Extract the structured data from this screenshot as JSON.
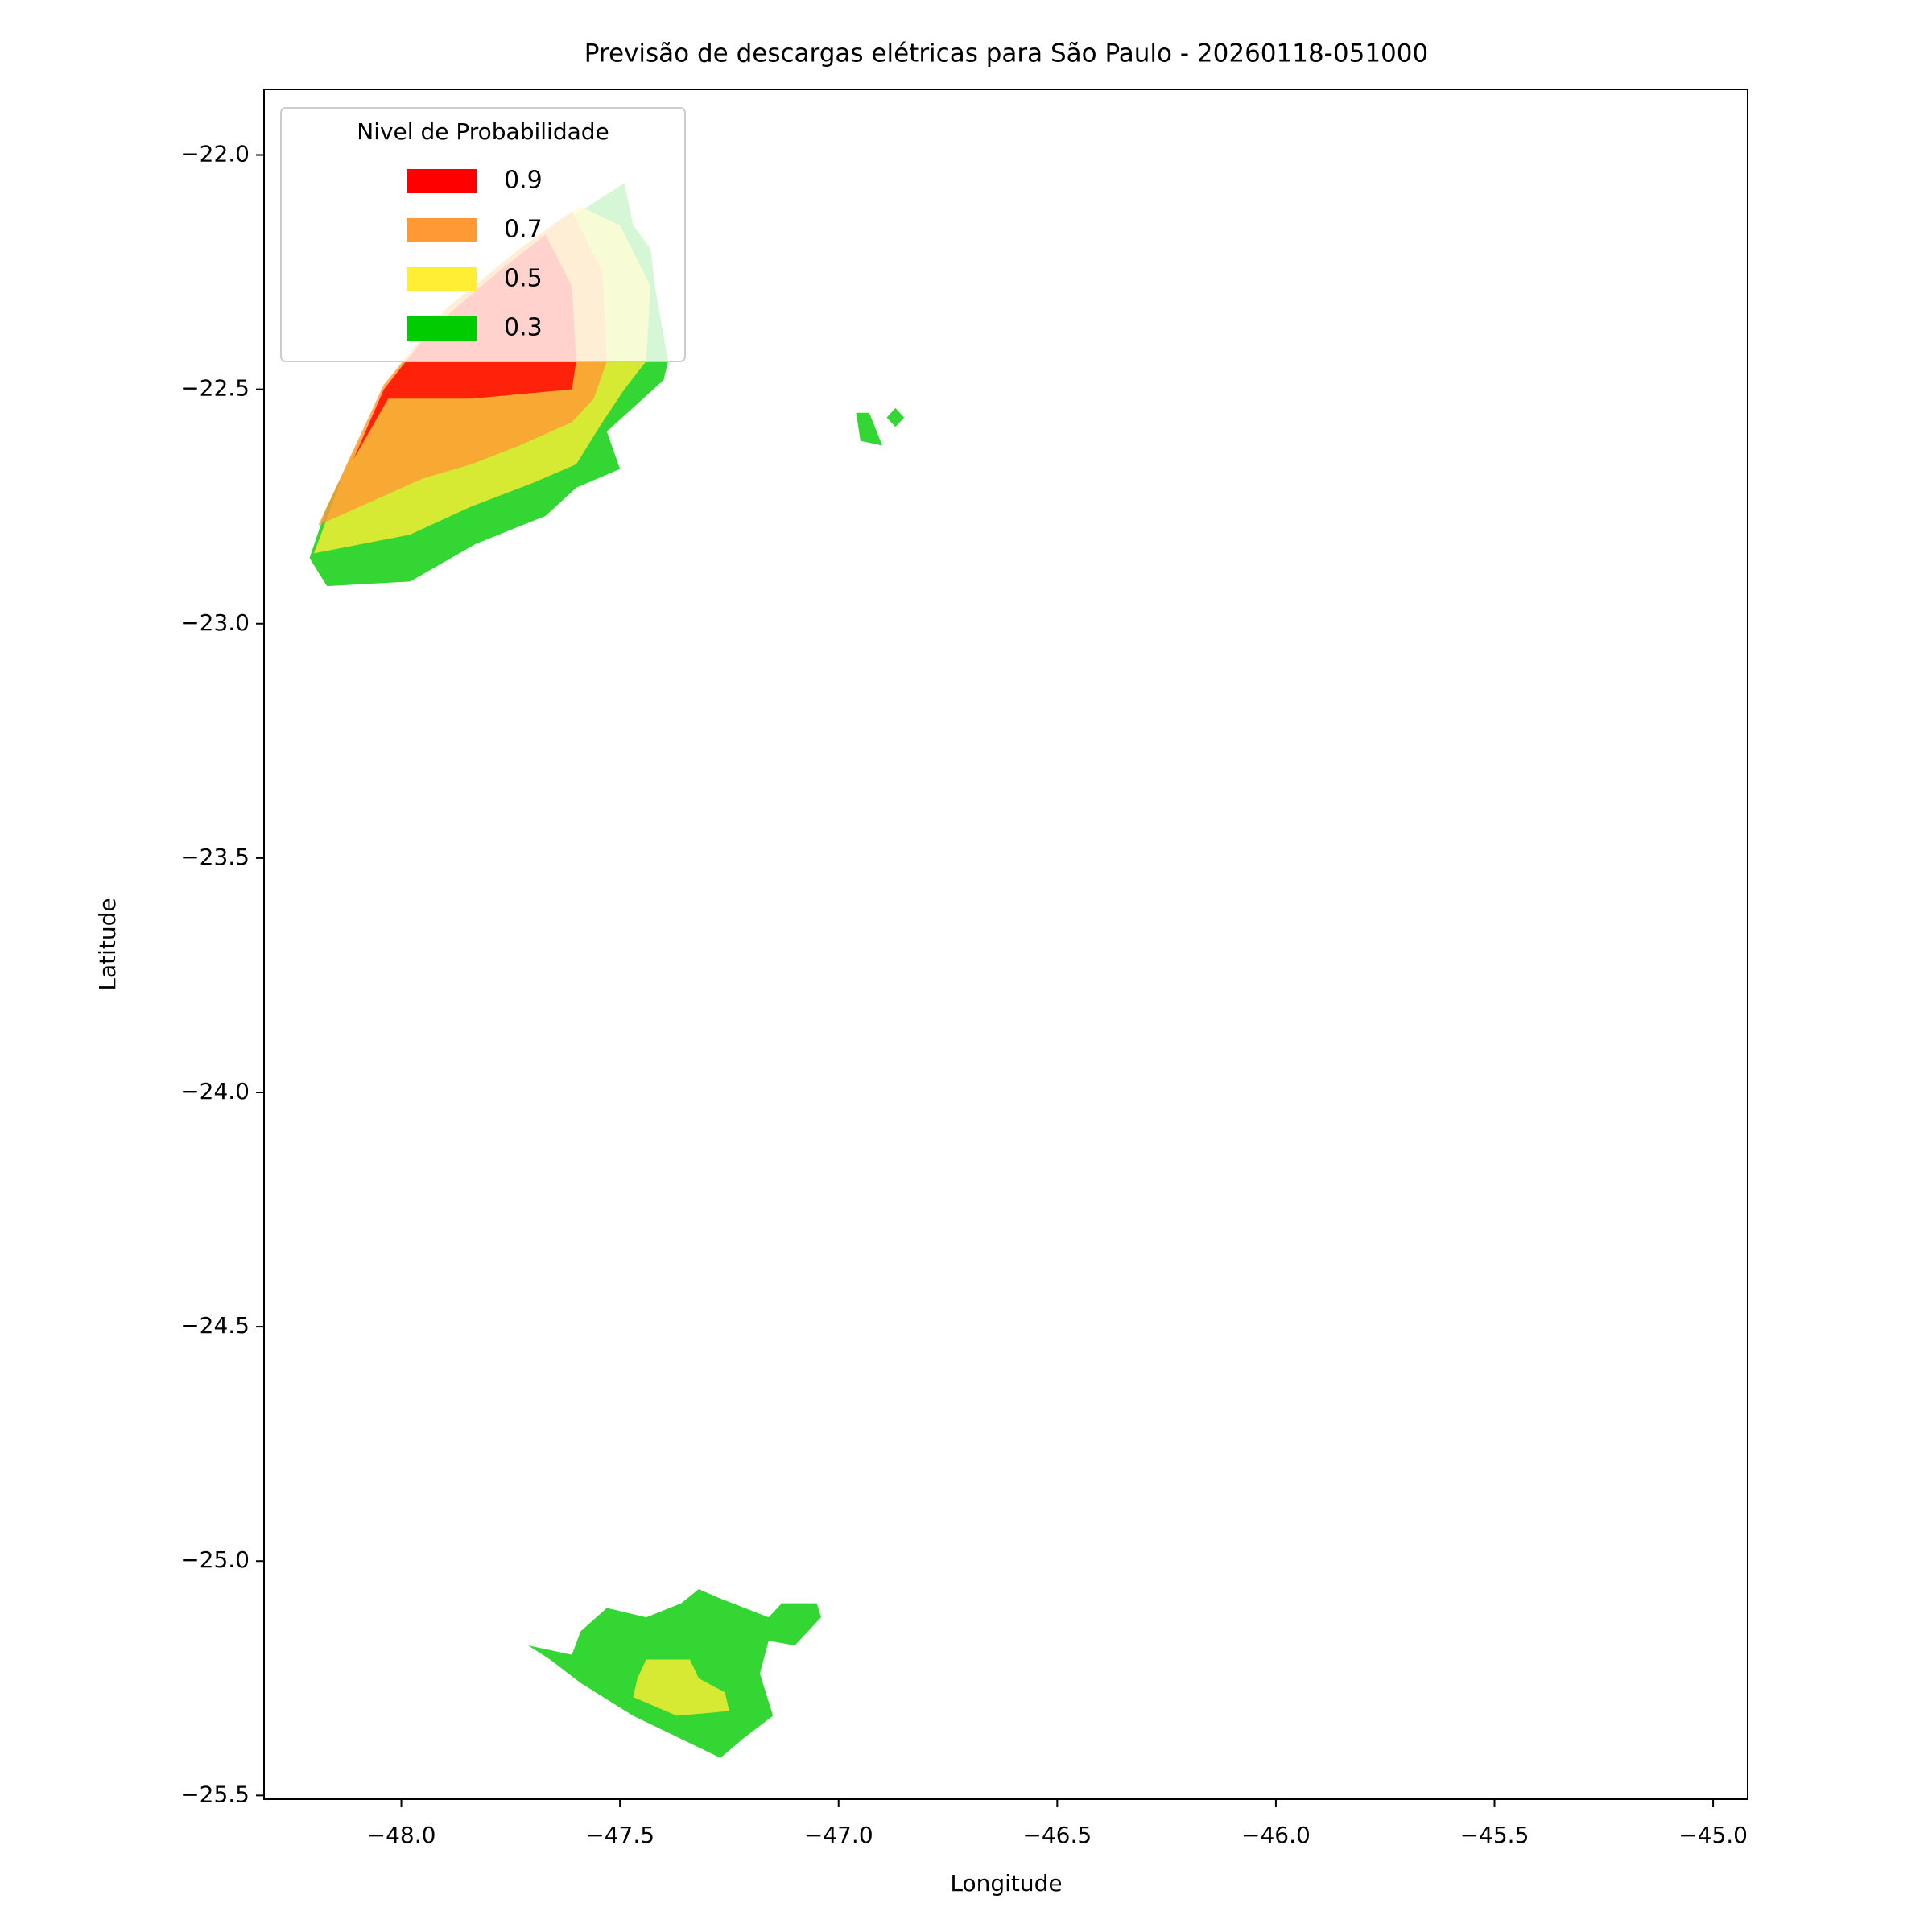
{
  "chart_data": {
    "type": "contour",
    "title": "Previsão de descargas elétricas para São Paulo - 20260118-051000",
    "x_label": "Longitude",
    "y_label": "Latitude",
    "legend_title": "Nivel de Probabilidade",
    "legend_position": "upper left",
    "alpha": 0.8,
    "xlim": [
      -48.314,
      -44.921
    ],
    "ylim": [
      -25.508,
      -21.86
    ],
    "xticks": [
      {
        "value": -48.0,
        "label": "−48.0"
      },
      {
        "value": -47.5,
        "label": "−47.5"
      },
      {
        "value": -47.0,
        "label": "−47.0"
      },
      {
        "value": -46.5,
        "label": "−46.5"
      },
      {
        "value": -46.0,
        "label": "−46.0"
      },
      {
        "value": -45.5,
        "label": "−45.5"
      },
      {
        "value": -45.0,
        "label": "−45.0"
      }
    ],
    "yticks": [
      {
        "value": -22.0,
        "label": "−22.0"
      },
      {
        "value": -22.5,
        "label": "−22.5"
      },
      {
        "value": -23.0,
        "label": "−23.0"
      },
      {
        "value": -23.5,
        "label": "−23.5"
      },
      {
        "value": -24.0,
        "label": "−24.0"
      },
      {
        "value": -24.5,
        "label": "−24.5"
      },
      {
        "value": -25.0,
        "label": "−25.0"
      },
      {
        "value": -25.5,
        "label": "−25.5"
      }
    ],
    "series": [
      {
        "name": "0.9",
        "color": "#ff0000",
        "regions": [
          {
            "lon": [
              -48.11,
              -48.03,
              -47.84,
              -47.61,
              -47.6,
              -47.61,
              -47.67,
              -47.78,
              -47.93,
              -48.04
            ],
            "lat": [
              -22.65,
              -22.52,
              -22.52,
              -22.5,
              -22.44,
              -22.28,
              -22.17,
              -22.25,
              -22.37,
              -22.5
            ]
          }
        ]
      },
      {
        "name": "0.7",
        "color": "#ff9933",
        "regions": [
          {
            "lon": [
              -48.19,
              -48.07,
              -47.95,
              -47.84,
              -47.73,
              -47.61,
              -47.56,
              -47.53,
              -47.54,
              -47.61,
              -47.73,
              -47.9,
              -48.04,
              -48.12
            ],
            "lat": [
              -22.79,
              -22.74,
              -22.69,
              -22.66,
              -22.62,
              -22.57,
              -22.52,
              -22.44,
              -22.25,
              -22.12,
              -22.2,
              -22.33,
              -22.49,
              -22.65
            ]
          }
        ]
      },
      {
        "name": "0.5",
        "color": "#ffee33",
        "regions": [
          {
            "lon": [
              -48.2,
              -47.98,
              -47.84,
              -47.7,
              -47.6,
              -47.54,
              -47.49,
              -47.44,
              -47.43,
              -47.5,
              -47.59,
              -47.73,
              -47.9,
              -48.01,
              -48.12
            ],
            "lat": [
              -22.85,
              -22.81,
              -22.75,
              -22.7,
              -22.66,
              -22.57,
              -22.5,
              -22.44,
              -22.28,
              -22.15,
              -22.11,
              -22.2,
              -22.33,
              -22.46,
              -22.65
            ]
          },
          {
            "lon": [
              -47.47,
              -47.37,
              -47.25,
              -47.26,
              -47.32,
              -47.34,
              -47.44,
              -47.46
            ],
            "lat": [
              -25.29,
              -25.33,
              -25.32,
              -25.28,
              -25.25,
              -25.21,
              -25.21,
              -25.25
            ]
          }
        ]
      },
      {
        "name": "0.3",
        "color": "#00cc00",
        "regions": [
          {
            "lon": [
              -48.21,
              -48.17,
              -47.98,
              -47.83,
              -47.67,
              -47.6,
              -47.5,
              -47.53,
              -47.4,
              -47.39,
              -47.42,
              -47.43,
              -47.47,
              -47.49,
              -47.64,
              -47.78,
              -47.93,
              -48.01,
              -48.1,
              -48.17
            ],
            "lat": [
              -22.86,
              -22.92,
              -22.91,
              -22.83,
              -22.77,
              -22.71,
              -22.67,
              -22.59,
              -22.48,
              -22.44,
              -22.28,
              -22.2,
              -22.15,
              -22.06,
              -22.15,
              -22.25,
              -22.38,
              -22.49,
              -22.62,
              -22.75
            ]
          },
          {
            "lon": [
              -46.96,
              -46.93,
              -46.9,
              -46.95
            ],
            "lat": [
              -22.55,
              -22.55,
              -22.62,
              -22.61
            ]
          },
          {
            "lon": [
              -46.89,
              -46.87,
              -46.85,
              -46.87
            ],
            "lat": [
              -22.56,
              -22.54,
              -22.56,
              -22.58
            ]
          },
          {
            "lon": [
              -47.71,
              -47.66,
              -47.59,
              -47.47,
              -47.27,
              -47.22,
              -47.15,
              -47.18,
              -47.16,
              -47.1,
              -47.04,
              -47.05,
              -47.13,
              -47.16,
              -47.27,
              -47.32,
              -47.36,
              -47.44,
              -47.53,
              -47.59,
              -47.61
            ],
            "lat": [
              -25.18,
              -25.21,
              -25.26,
              -25.33,
              -25.42,
              -25.38,
              -25.33,
              -25.24,
              -25.17,
              -25.18,
              -25.12,
              -25.09,
              -25.09,
              -25.12,
              -25.08,
              -25.06,
              -25.09,
              -25.12,
              -25.1,
              -25.15,
              -25.2
            ]
          }
        ]
      }
    ]
  }
}
